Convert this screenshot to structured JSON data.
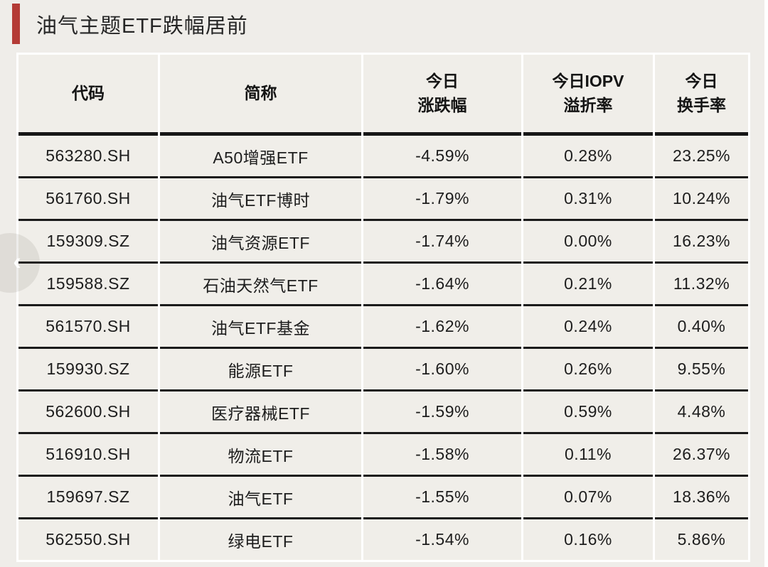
{
  "title": {
    "text": "油气主题ETF跌幅居前"
  },
  "colors": {
    "page_bg": "#efede9",
    "cell_bg": "#f0eee9",
    "accent_red": "#b43b36",
    "row_line": "#1a1a1a",
    "column_separator": "#ffffff",
    "text": "#1d1d1d"
  },
  "carousel": {
    "prev_icon": "‹"
  },
  "table": {
    "columns": [
      {
        "line1": "代码",
        "line2": ""
      },
      {
        "line1": "简称",
        "line2": ""
      },
      {
        "line1": "今日",
        "line2": "涨跌幅"
      },
      {
        "line1": "今日IOPV",
        "line2": "溢折率"
      },
      {
        "line1": "今日",
        "line2": "换手率"
      }
    ],
    "rows": [
      {
        "code": "563280.SH",
        "name": "A50增强ETF",
        "change": "-4.59%",
        "iopv": "0.28%",
        "turnover": "23.25%"
      },
      {
        "code": "561760.SH",
        "name": "油气ETF博时",
        "change": "-1.79%",
        "iopv": "0.31%",
        "turnover": "10.24%"
      },
      {
        "code": "159309.SZ",
        "name": "油气资源ETF",
        "change": "-1.74%",
        "iopv": "0.00%",
        "turnover": "16.23%"
      },
      {
        "code": "159588.SZ",
        "name": "石油天然气ETF",
        "change": "-1.64%",
        "iopv": "0.21%",
        "turnover": "11.32%"
      },
      {
        "code": "561570.SH",
        "name": "油气ETF基金",
        "change": "-1.62%",
        "iopv": "0.24%",
        "turnover": "0.40%"
      },
      {
        "code": "159930.SZ",
        "name": "能源ETF",
        "change": "-1.60%",
        "iopv": "0.26%",
        "turnover": "9.55%"
      },
      {
        "code": "562600.SH",
        "name": "医疗器械ETF",
        "change": "-1.59%",
        "iopv": "0.59%",
        "turnover": "4.48%"
      },
      {
        "code": "516910.SH",
        "name": "物流ETF",
        "change": "-1.58%",
        "iopv": "0.11%",
        "turnover": "26.37%"
      },
      {
        "code": "159697.SZ",
        "name": "油气ETF",
        "change": "-1.55%",
        "iopv": "0.07%",
        "turnover": "18.36%"
      },
      {
        "code": "562550.SH",
        "name": "绿电ETF",
        "change": "-1.54%",
        "iopv": "0.16%",
        "turnover": "5.86%"
      }
    ]
  },
  "chart_data": {
    "type": "table",
    "title": "油气主题ETF跌幅居前",
    "columns": [
      "代码",
      "简称",
      "今日涨跌幅",
      "今日IOPV溢折率",
      "今日换手率"
    ],
    "rows": [
      [
        "563280.SH",
        "A50增强ETF",
        "-4.59%",
        "0.28%",
        "23.25%"
      ],
      [
        "561760.SH",
        "油气ETF博时",
        "-1.79%",
        "0.31%",
        "10.24%"
      ],
      [
        "159309.SZ",
        "油气资源ETF",
        "-1.74%",
        "0.00%",
        "16.23%"
      ],
      [
        "159588.SZ",
        "石油天然气ETF",
        "-1.64%",
        "0.21%",
        "11.32%"
      ],
      [
        "561570.SH",
        "油气ETF基金",
        "-1.62%",
        "0.24%",
        "0.40%"
      ],
      [
        "159930.SZ",
        "能源ETF",
        "-1.60%",
        "0.26%",
        "9.55%"
      ],
      [
        "562600.SH",
        "医疗器械ETF",
        "-1.59%",
        "0.59%",
        "4.48%"
      ],
      [
        "516910.SH",
        "物流ETF",
        "-1.58%",
        "0.11%",
        "26.37%"
      ],
      [
        "159697.SZ",
        "油气ETF",
        "-1.55%",
        "0.07%",
        "18.36%"
      ],
      [
        "562550.SH",
        "绿电ETF",
        "-1.54%",
        "0.16%",
        "5.86%"
      ]
    ]
  }
}
